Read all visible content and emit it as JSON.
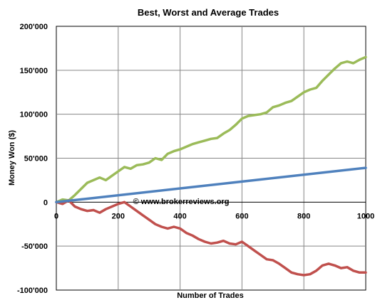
{
  "chart_data": {
    "type": "line",
    "title": "Best, Worst and Average Trades",
    "xlabel": "Number of Trades",
    "ylabel": "Money Won ($)",
    "xlim": [
      0,
      1000
    ],
    "ylim": [
      -100000,
      200000
    ],
    "x_ticks": [
      0,
      200,
      400,
      600,
      800,
      1000
    ],
    "x_tick_labels": [
      "0",
      "200",
      "400",
      "600",
      "800",
      "1000"
    ],
    "y_ticks": [
      -100000,
      -50000,
      0,
      50000,
      100000,
      150000,
      200000
    ],
    "y_tick_labels": [
      "-100'000",
      "-50'000",
      "0",
      "50'000",
      "100'000",
      "150'000",
      "200'000"
    ],
    "grid": true,
    "annotation": "© www.brokerreviews.org",
    "series_colors": {
      "best": "#9bbb59",
      "worst": "#c0504d",
      "average": "#4f81bd"
    },
    "series": [
      {
        "key": "best",
        "x": [
          0,
          20,
          40,
          60,
          80,
          100,
          120,
          140,
          160,
          180,
          200,
          220,
          240,
          260,
          280,
          300,
          320,
          340,
          360,
          380,
          400,
          420,
          440,
          460,
          480,
          500,
          520,
          540,
          560,
          580,
          600,
          620,
          640,
          660,
          680,
          700,
          720,
          740,
          760,
          780,
          800,
          820,
          840,
          860,
          880,
          900,
          920,
          940,
          960,
          980,
          1000
        ],
        "values": [
          0,
          3000,
          2000,
          8000,
          15000,
          22000,
          25000,
          28000,
          25000,
          30000,
          35000,
          40000,
          38000,
          42000,
          43000,
          45000,
          50000,
          48000,
          55000,
          58000,
          60000,
          63000,
          66000,
          68000,
          70000,
          72000,
          73000,
          78000,
          82000,
          88000,
          95000,
          98000,
          99000,
          100000,
          102000,
          108000,
          110000,
          113000,
          115000,
          120000,
          125000,
          128000,
          130000,
          138000,
          145000,
          152000,
          158000,
          160000,
          158000,
          162000,
          165000
        ]
      },
      {
        "key": "worst",
        "x": [
          0,
          20,
          40,
          60,
          80,
          100,
          120,
          140,
          160,
          180,
          200,
          220,
          240,
          260,
          280,
          300,
          320,
          340,
          360,
          380,
          400,
          420,
          440,
          460,
          480,
          500,
          520,
          540,
          560,
          580,
          600,
          620,
          640,
          660,
          680,
          700,
          720,
          740,
          760,
          780,
          800,
          820,
          840,
          860,
          880,
          900,
          920,
          940,
          960,
          980,
          1000
        ],
        "values": [
          0,
          -2000,
          2000,
          -5000,
          -8000,
          -10000,
          -9000,
          -12000,
          -8000,
          -5000,
          -2000,
          0,
          -5000,
          -10000,
          -15000,
          -20000,
          -25000,
          -28000,
          -30000,
          -28000,
          -30000,
          -35000,
          -38000,
          -42000,
          -45000,
          -47000,
          -46000,
          -44000,
          -47000,
          -48000,
          -45000,
          -50000,
          -55000,
          -60000,
          -65000,
          -66000,
          -70000,
          -75000,
          -80000,
          -82000,
          -83000,
          -82000,
          -78000,
          -72000,
          -70000,
          -72000,
          -75000,
          -74000,
          -78000,
          -80000,
          -80000
        ]
      },
      {
        "key": "average",
        "x": [
          0,
          1000
        ],
        "values": [
          0,
          39000
        ]
      }
    ]
  }
}
